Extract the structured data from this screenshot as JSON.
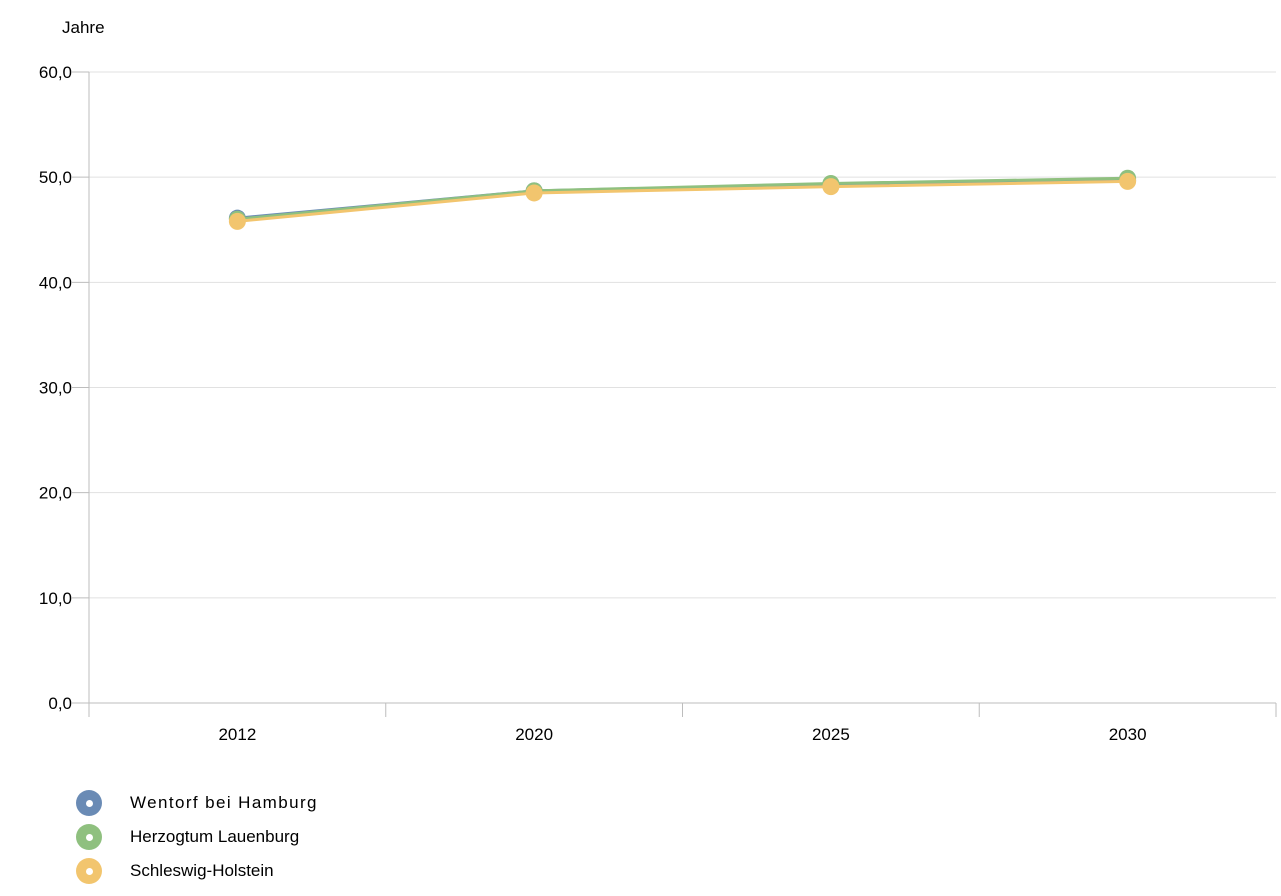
{
  "chart_data": {
    "type": "line",
    "ylabel": "Jahre",
    "categories": [
      "2012",
      "2020",
      "2025",
      "2030"
    ],
    "ylim": [
      0,
      60
    ],
    "yticks": [
      0,
      10,
      20,
      30,
      40,
      50,
      60
    ],
    "ytick_labels": [
      "0,0",
      "10,0",
      "20,0",
      "30,0",
      "40,0",
      "50,0",
      "60,0"
    ],
    "grid": true,
    "legend_position": "bottom-left",
    "series": [
      {
        "name": "Wentorf bei Hamburg",
        "color": "#6a8bb5",
        "values": [
          46.1,
          48.7,
          49.3,
          49.7
        ]
      },
      {
        "name": "Herzogtum Lauenburg",
        "color": "#8fc07f",
        "values": [
          46.0,
          48.7,
          49.4,
          49.9
        ]
      },
      {
        "name": "Schleswig-Holstein",
        "color": "#f2c56e",
        "values": [
          45.8,
          48.5,
          49.1,
          49.6
        ]
      }
    ]
  }
}
